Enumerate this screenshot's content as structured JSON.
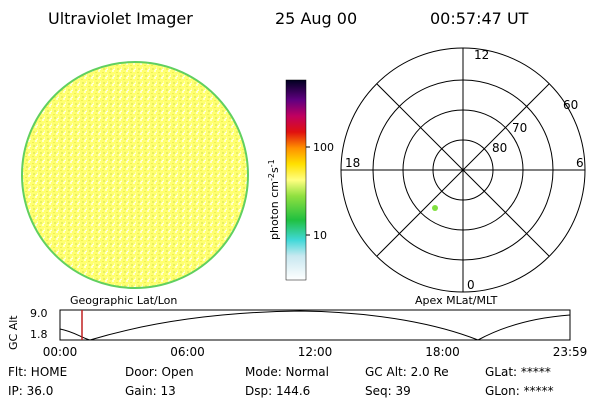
{
  "header": {
    "title": "Ultraviolet Imager",
    "date": "25 Aug 00",
    "time": "00:57:47 UT"
  },
  "colorbar": {
    "label": [
      "photon cm",
      "-2",
      "s",
      "-1"
    ],
    "ticks": [
      "100",
      "10"
    ]
  },
  "polar": {
    "mlt_labels": [
      "12",
      "6",
      "18",
      "0"
    ],
    "lat_labels": [
      "60",
      "70",
      "80"
    ]
  },
  "coords": {
    "left": "Geographic Lat/Lon",
    "right": "Apex MLat/MLT"
  },
  "altitude_plot": {
    "ylabel": "GC Alt",
    "yticks": [
      "9.0",
      "1.8"
    ],
    "xticks": [
      "00:00",
      "06:00",
      "12:00",
      "18:00",
      "23:59"
    ]
  },
  "status": {
    "rows": [
      [
        "Flt: HOME",
        "Door: Open",
        "Mode: Normal",
        "GC Alt: 2.0 Re",
        "GLat: *****"
      ],
      [
        "IP: 36.0",
        "Gain: 13",
        "Dsp: 144.6",
        "Seq: 39",
        "GLon: *****"
      ]
    ]
  }
}
